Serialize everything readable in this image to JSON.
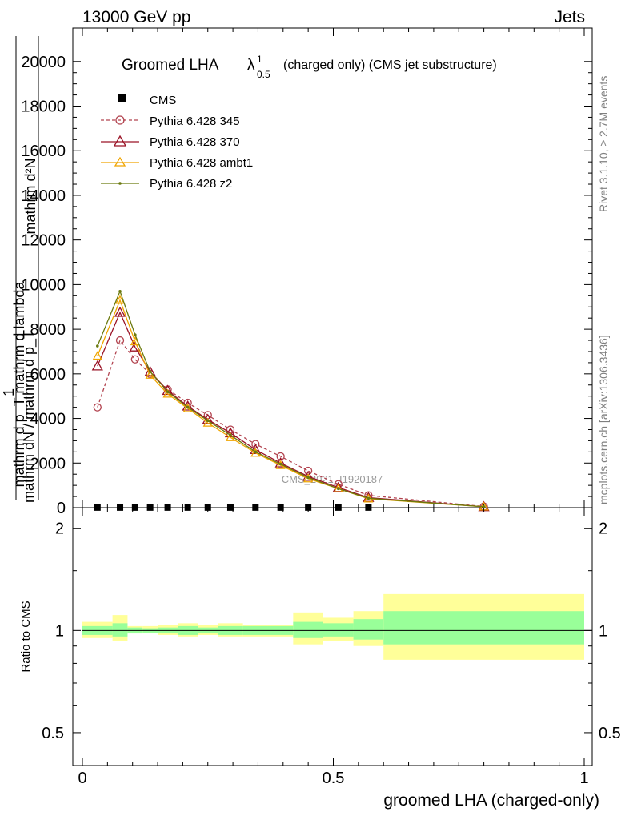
{
  "header": {
    "left": "13000 GeV pp",
    "right": "Jets"
  },
  "side": {
    "rivet": "Rivet 3.1.10, ≥ 2.7M events",
    "mcplots": "mcplots.cern.ch [arXiv:1306.3436]"
  },
  "watermark": "CMS_2021_I1920187",
  "colors": {
    "cms": "#000000",
    "p345": "#b2434f",
    "p370": "#9a1326",
    "ambt1": "#f0a500",
    "z2": "#6b7a0e",
    "band_inner": "#99ff99",
    "band_outer": "#ffff99"
  },
  "chart_data": [
    {
      "type": "line",
      "title_main": "Groomed LHA",
      "title_lambda": "λ",
      "title_sup": "1",
      "title_sub": "0.5",
      "title_rest": "(charged only) (CMS jet substructure)",
      "ylabel_top": "mathrm d²N",
      "ylabel_mid": "mathrm d p_T mathrm d lambda",
      "ylabel_left_top": "1",
      "ylabel_left_bottom": "mathrm dN / mathrm d p_T",
      "xlim": [
        -0.02,
        1.0
      ],
      "ylim": [
        0,
        21500
      ],
      "yticks": [
        {
          "value": 0,
          "label": "0"
        },
        {
          "value": 2000,
          "label": "2000"
        },
        {
          "value": 4000,
          "label": "4000"
        },
        {
          "value": 6000,
          "label": "6000"
        },
        {
          "value": 8000,
          "label": "8000"
        },
        {
          "value": 10000,
          "label": "10000"
        },
        {
          "value": 12000,
          "label": "12000"
        },
        {
          "value": 14000,
          "label": "14000"
        },
        {
          "value": 16000,
          "label": "16000"
        },
        {
          "value": 18000,
          "label": "18000"
        },
        {
          "value": 20000,
          "label": "20000"
        }
      ],
      "x": [
        0.03,
        0.075,
        0.105,
        0.135,
        0.17,
        0.21,
        0.25,
        0.295,
        0.345,
        0.395,
        0.45,
        0.51,
        0.57,
        0.8
      ],
      "legend": [
        {
          "name": "CMS",
          "key": "cms"
        },
        {
          "name": "Pythia 6.428 345",
          "key": "p345"
        },
        {
          "name": "Pythia 6.428 370",
          "key": "p370"
        },
        {
          "name": "Pythia 6.428 ambt1",
          "key": "ambt1"
        },
        {
          "name": "Pythia 6.428 z2",
          "key": "z2"
        }
      ],
      "series": [
        {
          "name": "CMS",
          "key": "cms",
          "marker": "square",
          "x": [
            0.03,
            0.075,
            0.105,
            0.135,
            0.17,
            0.21,
            0.25,
            0.295,
            0.345,
            0.395,
            0.45,
            0.51,
            0.57
          ],
          "values": [
            5,
            5,
            5,
            5,
            5,
            5,
            5,
            5,
            5,
            5,
            5,
            5,
            5
          ]
        },
        {
          "name": "Pythia 6.428 345",
          "key": "p345",
          "marker": "circle",
          "dashed": true,
          "values": [
            4500,
            7500,
            6650,
            6000,
            5300,
            4700,
            4150,
            3500,
            2850,
            2300,
            1650,
            1050,
            550,
            50
          ]
        },
        {
          "name": "Pythia 6.428 370",
          "key": "p370",
          "marker": "triangle",
          "dashed": false,
          "values": [
            6350,
            8750,
            7200,
            6100,
            5250,
            4550,
            3950,
            3350,
            2600,
            2000,
            1400,
            900,
            450,
            40
          ]
        },
        {
          "name": "Pythia 6.428 ambt1",
          "key": "ambt1",
          "marker": "triangle",
          "dashed": false,
          "values": [
            6800,
            9300,
            7450,
            5950,
            5100,
            4450,
            3800,
            3150,
            2450,
            1900,
            1300,
            850,
            400,
            40
          ]
        },
        {
          "name": "Pythia 6.428 z2",
          "key": "z2",
          "marker": "dot",
          "dashed": false,
          "values": [
            7250,
            9700,
            7750,
            6100,
            5200,
            4500,
            3900,
            3250,
            2500,
            1950,
            1350,
            850,
            420,
            40
          ]
        }
      ]
    },
    {
      "type": "area",
      "ylabel": "Ratio to CMS",
      "xlabel": "groomed LHA (charged-only)",
      "ylim": [
        0.4,
        2.3
      ],
      "log_y": true,
      "xticks": [
        {
          "value": 0,
          "label": "0"
        },
        {
          "value": 0.5,
          "label": "0.5"
        },
        {
          "value": 1,
          "label": "1"
        }
      ],
      "yticks": [
        {
          "value": 0.5,
          "label": "0.5"
        },
        {
          "value": 1,
          "label": "1"
        },
        {
          "value": 2,
          "label": "2"
        }
      ],
      "bins": [
        {
          "lo": 0.0,
          "hi": 0.06,
          "inner": [
            0.97,
            1.03
          ],
          "outer": [
            0.95,
            1.06
          ]
        },
        {
          "lo": 0.06,
          "hi": 0.09,
          "inner": [
            0.96,
            1.05
          ],
          "outer": [
            0.93,
            1.11
          ]
        },
        {
          "lo": 0.09,
          "hi": 0.12,
          "inner": [
            0.98,
            1.02
          ],
          "outer": [
            0.98,
            1.03
          ]
        },
        {
          "lo": 0.12,
          "hi": 0.15,
          "inner": [
            0.985,
            1.015
          ],
          "outer": [
            0.98,
            1.03
          ]
        },
        {
          "lo": 0.15,
          "hi": 0.19,
          "inner": [
            0.98,
            1.02
          ],
          "outer": [
            0.97,
            1.04
          ]
        },
        {
          "lo": 0.19,
          "hi": 0.23,
          "inner": [
            0.97,
            1.03
          ],
          "outer": [
            0.96,
            1.05
          ]
        },
        {
          "lo": 0.23,
          "hi": 0.27,
          "inner": [
            0.98,
            1.02
          ],
          "outer": [
            0.97,
            1.04
          ]
        },
        {
          "lo": 0.27,
          "hi": 0.32,
          "inner": [
            0.97,
            1.03
          ],
          "outer": [
            0.96,
            1.05
          ]
        },
        {
          "lo": 0.32,
          "hi": 0.37,
          "inner": [
            0.97,
            1.03
          ],
          "outer": [
            0.96,
            1.04
          ]
        },
        {
          "lo": 0.37,
          "hi": 0.42,
          "inner": [
            0.97,
            1.03
          ],
          "outer": [
            0.96,
            1.04
          ]
        },
        {
          "lo": 0.42,
          "hi": 0.48,
          "inner": [
            0.95,
            1.06
          ],
          "outer": [
            0.91,
            1.13
          ]
        },
        {
          "lo": 0.48,
          "hi": 0.54,
          "inner": [
            0.96,
            1.05
          ],
          "outer": [
            0.93,
            1.09
          ]
        },
        {
          "lo": 0.54,
          "hi": 0.6,
          "inner": [
            0.94,
            1.08
          ],
          "outer": [
            0.9,
            1.14
          ]
        },
        {
          "lo": 0.6,
          "hi": 1.0,
          "inner": [
            0.91,
            1.14
          ],
          "outer": [
            0.82,
            1.28
          ]
        }
      ]
    }
  ]
}
